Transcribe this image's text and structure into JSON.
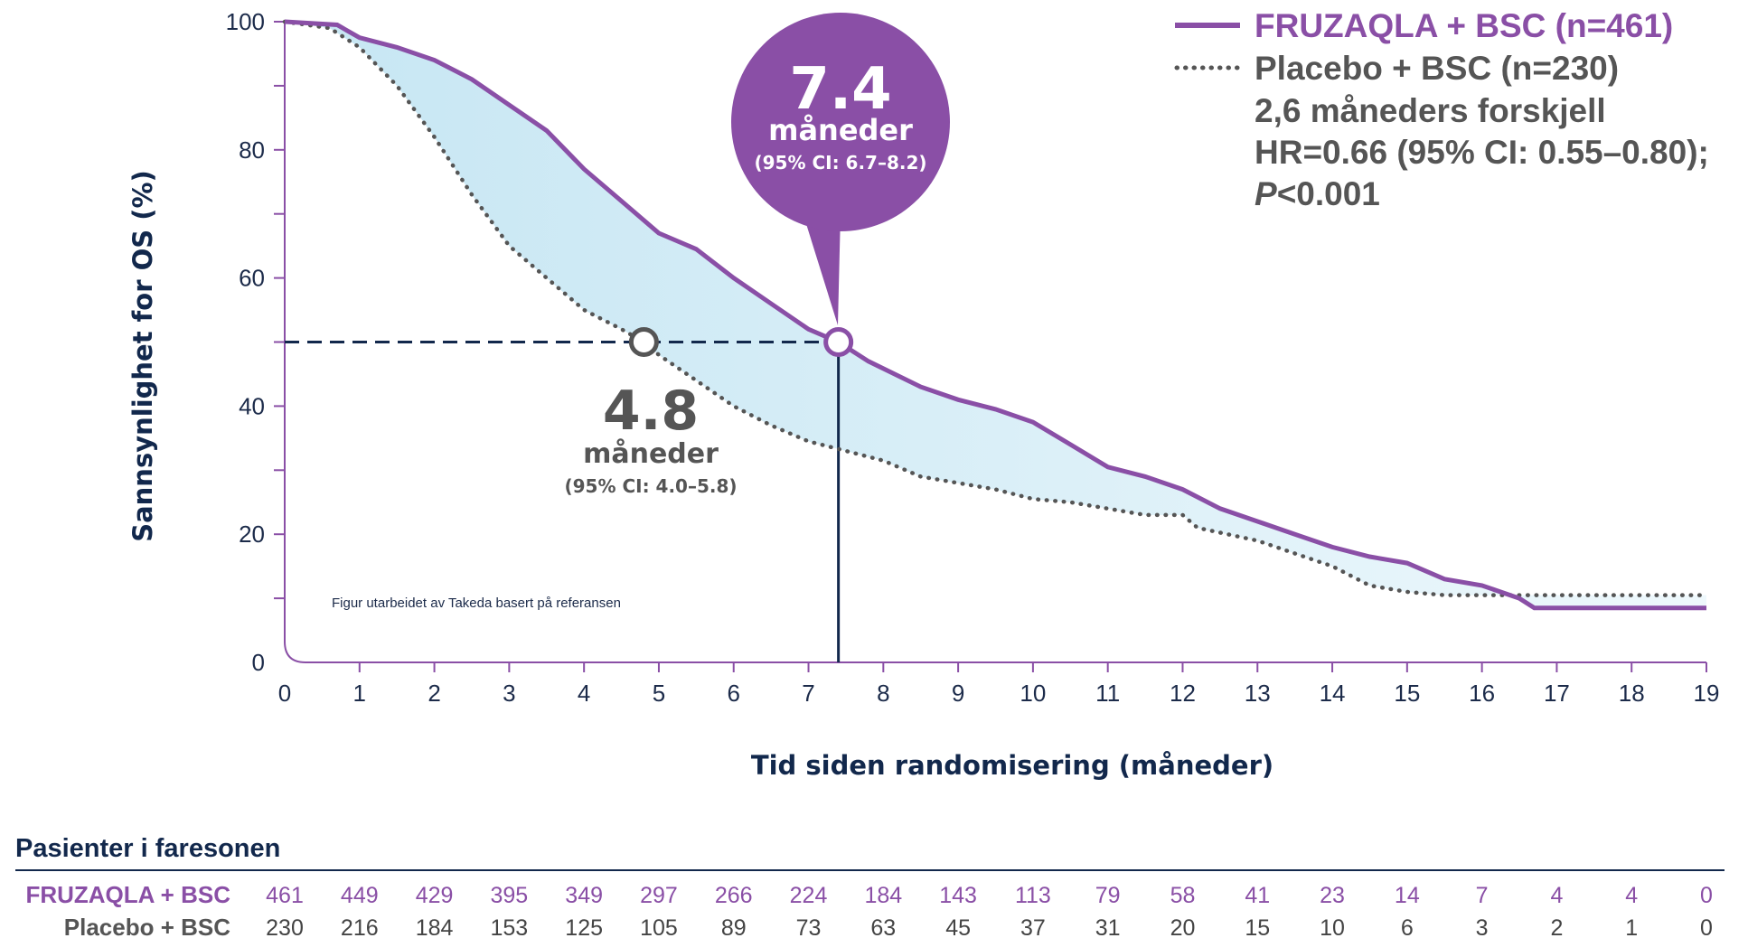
{
  "chart_data": {
    "type": "line",
    "subtype": "kaplan-meier",
    "ylabel": "Sannsynlighet for OS (%)",
    "xlabel": "Tid siden randomisering (måneder)",
    "xlim": [
      0,
      19
    ],
    "ylim": [
      0,
      100
    ],
    "x_ticks": [
      "0",
      "1",
      "2",
      "3",
      "4",
      "5",
      "6",
      "7",
      "8",
      "9",
      "10",
      "11",
      "12",
      "13",
      "14",
      "15",
      "16",
      "17",
      "18",
      "19"
    ],
    "y_ticks": [
      "0",
      "20",
      "40",
      "60",
      "80",
      "100"
    ],
    "series": [
      {
        "name": "FRUZAQLA + BSC (n=461)",
        "color": "#8a4fa6",
        "style": "solid",
        "points": [
          [
            0,
            100
          ],
          [
            0.7,
            99.5
          ],
          [
            1,
            97.5
          ],
          [
            1.5,
            96
          ],
          [
            2,
            94
          ],
          [
            2.5,
            91
          ],
          [
            3,
            87
          ],
          [
            3.5,
            83
          ],
          [
            4,
            77
          ],
          [
            4.5,
            72
          ],
          [
            5,
            67
          ],
          [
            5.5,
            64.5
          ],
          [
            6,
            60
          ],
          [
            6.5,
            56
          ],
          [
            7,
            52
          ],
          [
            7.4,
            50
          ],
          [
            7.8,
            47
          ],
          [
            8.5,
            43
          ],
          [
            9,
            41
          ],
          [
            9.5,
            39.5
          ],
          [
            10,
            37.5
          ],
          [
            10.5,
            34
          ],
          [
            11,
            30.5
          ],
          [
            11.5,
            29
          ],
          [
            12,
            27
          ],
          [
            12.5,
            24
          ],
          [
            13,
            22
          ],
          [
            13.5,
            20
          ],
          [
            14,
            18
          ],
          [
            14.5,
            16.5
          ],
          [
            15,
            15.5
          ],
          [
            15.5,
            13
          ],
          [
            16,
            12
          ],
          [
            16.5,
            10
          ],
          [
            16.7,
            8.5
          ],
          [
            19,
            8.5
          ]
        ]
      },
      {
        "name": "Placebo + BSC (n=230)",
        "color": "#555555",
        "style": "dotted",
        "points": [
          [
            0,
            100
          ],
          [
            0.6,
            99
          ],
          [
            1,
            96
          ],
          [
            1.5,
            90
          ],
          [
            2,
            82
          ],
          [
            2.5,
            73
          ],
          [
            3,
            65
          ],
          [
            3.5,
            60
          ],
          [
            4,
            55
          ],
          [
            4.5,
            52
          ],
          [
            4.8,
            50
          ],
          [
            5,
            48
          ],
          [
            5.5,
            44
          ],
          [
            6,
            40
          ],
          [
            6.5,
            37
          ],
          [
            7,
            34.5
          ],
          [
            7.5,
            33
          ],
          [
            8,
            31.5
          ],
          [
            8.5,
            29
          ],
          [
            9,
            28
          ],
          [
            9.5,
            27
          ],
          [
            10,
            25.5
          ],
          [
            10.5,
            25
          ],
          [
            11,
            24
          ],
          [
            11.5,
            23
          ],
          [
            12,
            23
          ],
          [
            12.2,
            21
          ],
          [
            13,
            19
          ],
          [
            13.5,
            17
          ],
          [
            14,
            15
          ],
          [
            14.5,
            12
          ],
          [
            15,
            11
          ],
          [
            15.5,
            10.5
          ],
          [
            19,
            10.5
          ]
        ]
      }
    ],
    "median_fruzaqla": {
      "value": "7.4",
      "x": 7.4,
      "y": 50,
      "unit": "måneder",
      "ci": "(95% CI: 6.7–8.2)"
    },
    "median_placebo": {
      "value": "4.8",
      "x": 4.8,
      "y": 50,
      "unit": "måneder",
      "ci": "(95% CI: 4.0–5.8)"
    }
  },
  "legend": {
    "fruzaqla": "FRUZAQLA + BSC (n=461)",
    "placebo": "Placebo + BSC (n=230)",
    "difference": "2,6 måneders forskjell",
    "hr": "HR=0.66 (95% CI: 0.55–0.80);",
    "p_letter": "P",
    "p_value": "<0.001"
  },
  "note": "Figur utarbeidet av Takeda basert på referansen",
  "risk_table": {
    "title": "Pasienter i faresonen",
    "rows": [
      {
        "label": "FRUZAQLA + BSC",
        "values": [
          "461",
          "449",
          "429",
          "395",
          "349",
          "297",
          "266",
          "224",
          "184",
          "143",
          "113",
          "79",
          "58",
          "41",
          "23",
          "14",
          "7",
          "4",
          "4",
          "0"
        ]
      },
      {
        "label": "Placebo + BSC",
        "values": [
          "230",
          "216",
          "184",
          "153",
          "125",
          "105",
          "89",
          "73",
          "63",
          "45",
          "37",
          "31",
          "20",
          "15",
          "10",
          "6",
          "3",
          "2",
          "1",
          "0"
        ]
      }
    ]
  },
  "colors": {
    "fruzaqla": "#8a4fa6",
    "placebo": "#555555",
    "navy": "#12284c",
    "fill": "#cfe9f4"
  }
}
